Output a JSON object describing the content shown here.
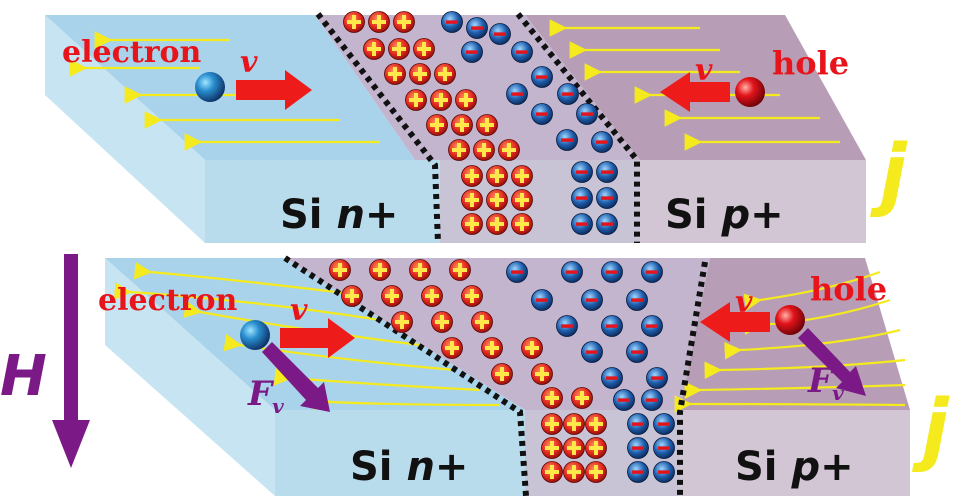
{
  "top_panel": {
    "electron_label": "electron",
    "hole_label": "hole",
    "velocity_symbol": "v",
    "n_region_label": {
      "main": "Si ",
      "sub": "n+"
    },
    "p_region_label": {
      "main": "Si ",
      "sub": "p+"
    },
    "current_label": "j"
  },
  "bottom_panel": {
    "electron_label": "electron",
    "hole_label": "hole",
    "velocity_symbol": "v",
    "force_symbol": "F",
    "force_subscript": "v",
    "n_region_label": {
      "main": "Si ",
      "sub": "n+"
    },
    "p_region_label": {
      "main": "Si ",
      "sub": "p+"
    },
    "current_label": "j"
  },
  "field_label": "H",
  "colors": {
    "n_region": "#a9d3ea",
    "p_region": "#c9b6c9",
    "depletion": "#b8a9c8",
    "field_lines": "#f4ea1e",
    "velocity_arrow": "#ee1b1b",
    "force_arrow": "#7b1a86",
    "electron": "#1b5fa8",
    "hole": "#e3141b"
  }
}
